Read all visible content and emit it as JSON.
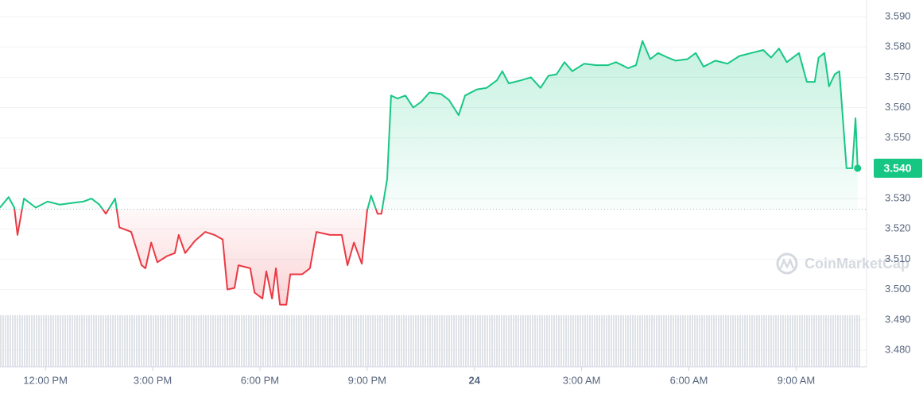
{
  "chart_data": {
    "type": "line",
    "x": [
      10.73,
      10.97,
      11.13,
      11.22,
      11.4,
      11.73,
      12.06,
      12.4,
      12.73,
      13.06,
      13.29,
      13.51,
      13.69,
      13.95,
      14.07,
      14.4,
      14.69,
      14.8,
      14.96,
      15.13,
      15.4,
      15.62,
      15.73,
      15.91,
      16.18,
      16.47,
      16.73,
      16.96,
      17.09,
      17.29,
      17.4,
      17.73,
      17.85,
      18.07,
      18.18,
      18.34,
      18.45,
      18.56,
      18.74,
      18.85,
      19.18,
      19.4,
      19.58,
      19.96,
      20.29,
      20.45,
      20.63,
      20.85,
      21.0,
      21.11,
      21.29,
      21.4,
      21.56,
      21.67,
      21.85,
      22.07,
      22.29,
      22.52,
      22.74,
      23.07,
      23.29,
      23.56,
      23.74,
      24.07,
      24.34,
      24.63,
      24.78,
      24.96,
      25.3,
      25.58,
      25.85,
      26.07,
      26.3,
      26.52,
      26.74,
      27.07,
      27.41,
      27.74,
      27.96,
      28.3,
      28.52,
      28.7,
      28.92,
      29.14,
      29.41,
      29.63,
      29.96,
      30.19,
      30.41,
      30.74,
      31.08,
      31.41,
      31.74,
      32.08,
      32.3,
      32.52,
      32.74,
      33.08,
      33.3,
      33.52,
      33.63,
      33.79,
      33.92,
      34.08,
      34.21,
      34.41,
      34.57,
      34.66,
      34.72
    ],
    "series": [
      {
        "values": [
          3.527,
          3.5305,
          3.527,
          3.518,
          3.53,
          3.527,
          3.529,
          3.528,
          3.5285,
          3.529,
          3.53,
          3.528,
          3.525,
          3.53,
          3.5205,
          3.519,
          3.508,
          3.507,
          3.5155,
          3.509,
          3.511,
          3.512,
          3.518,
          3.512,
          3.516,
          3.519,
          3.518,
          3.5165,
          3.5,
          3.5005,
          3.508,
          3.507,
          3.499,
          3.497,
          3.506,
          3.497,
          3.507,
          3.495,
          3.495,
          3.505,
          3.505,
          3.507,
          3.519,
          3.518,
          3.518,
          3.508,
          3.5155,
          3.5085,
          3.526,
          3.531,
          3.525,
          3.525,
          3.5365,
          3.564,
          3.563,
          3.564,
          3.56,
          3.562,
          3.565,
          3.5645,
          3.5625,
          3.5575,
          3.564,
          3.566,
          3.5665,
          3.569,
          3.572,
          3.568,
          3.569,
          3.57,
          3.5665,
          3.5705,
          3.571,
          3.575,
          3.572,
          3.5745,
          3.574,
          3.574,
          3.575,
          3.573,
          3.574,
          3.582,
          3.576,
          3.578,
          3.5765,
          3.5755,
          3.576,
          3.578,
          3.5735,
          3.5755,
          3.5745,
          3.577,
          3.578,
          3.579,
          3.5765,
          3.5795,
          3.575,
          3.578,
          3.5685,
          3.5685,
          3.5765,
          3.578,
          3.567,
          3.571,
          3.572,
          3.54,
          3.54,
          3.5565,
          3.54
        ],
        "color_up": "#16c784",
        "color_down": "#ea3943"
      }
    ],
    "baseline": 3.5265,
    "last_price": {
      "value": 3.54,
      "label": "3.540"
    },
    "xlim": [
      10.73,
      34.97
    ],
    "xticks": [
      {
        "value": 12,
        "label": "12:00 PM"
      },
      {
        "value": 15,
        "label": "3:00 PM"
      },
      {
        "value": 18,
        "label": "6:00 PM"
      },
      {
        "value": 21,
        "label": "9:00 PM"
      },
      {
        "value": 24,
        "label": "24"
      },
      {
        "value": 27,
        "label": "3:00 AM"
      },
      {
        "value": 30,
        "label": "6:00 AM"
      },
      {
        "value": 33,
        "label": "9:00 AM"
      }
    ],
    "ylim": [
      3.4745,
      3.5955
    ],
    "yticks": [
      {
        "value": 3.48,
        "label": "3.480"
      },
      {
        "value": 3.49,
        "label": "3.490"
      },
      {
        "value": 3.5,
        "label": "3.500"
      },
      {
        "value": 3.51,
        "label": "3.510"
      },
      {
        "value": 3.52,
        "label": "3.520"
      },
      {
        "value": 3.53,
        "label": "3.530"
      },
      {
        "value": 3.54,
        "label": "3.540"
      },
      {
        "value": 3.55,
        "label": "3.550"
      },
      {
        "value": 3.56,
        "label": "3.560"
      },
      {
        "value": 3.57,
        "label": "3.570"
      },
      {
        "value": 3.58,
        "label": "3.580"
      },
      {
        "value": 3.59,
        "label": "3.590"
      }
    ],
    "grid": true,
    "watermark": "CoinMarketCap"
  }
}
